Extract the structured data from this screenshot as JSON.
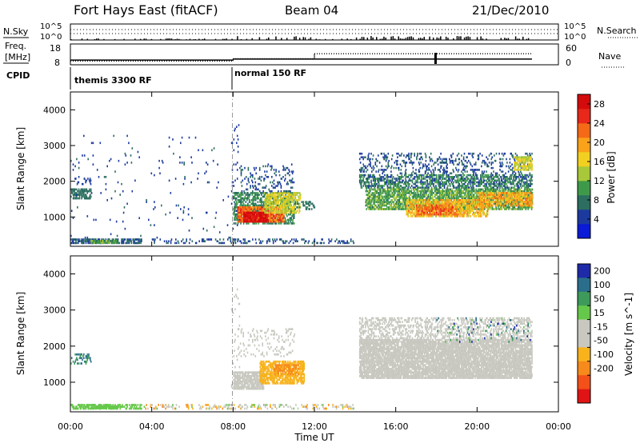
{
  "header": {
    "station": "Fort Hays East (fitACF)",
    "beam": "Beam 04",
    "date": "21/Dec/2010"
  },
  "top_panels": {
    "nsky_label": "N.Sky",
    "nsearch_label": "N.Search",
    "count_tick_top": "10^5",
    "count_tick_bottom": "10^0",
    "freq_label_line1": "Freq.",
    "freq_label_line2": "[MHz]",
    "freq_ticks": [
      "18",
      "8"
    ],
    "nave_label": "Nave",
    "nave_ticks": [
      "60",
      "0"
    ],
    "cpid_label": "CPID",
    "cpid_modes": [
      {
        "label": "themis 3300 RF",
        "start_hour": 0,
        "end_hour": 8
      },
      {
        "label": "normal 150 RF",
        "start_hour": 8,
        "end_hour": 24
      }
    ],
    "freq_series": [
      {
        "start_hour": 0,
        "end_hour": 8,
        "freq_mhz": 10.2
      },
      {
        "start_hour": 8,
        "end_hour": 22.7,
        "freq_mhz": 10.8
      }
    ],
    "nave_series": [
      {
        "start_hour": 0,
        "end_hour": 8,
        "nave": 10
      },
      {
        "start_hour": 8,
        "end_hour": 12,
        "nave": 18
      },
      {
        "start_hour": 12,
        "end_hour": 22.7,
        "nave": 35
      }
    ]
  },
  "chart_data": [
    {
      "type": "heatmap",
      "title": "",
      "xlabel": "Time UT",
      "ylabel": "Slant Range [km]",
      "x_ticks": [
        "00:00",
        "04:00",
        "08:00",
        "12:00",
        "16:00",
        "20:00",
        "00:00"
      ],
      "xlim": [
        0,
        24
      ],
      "y_ticks": [
        "1000",
        "2000",
        "3000",
        "4000"
      ],
      "ylim": [
        180,
        4500
      ],
      "colorbar": {
        "label": "Power [dB]",
        "ticks": [
          "4",
          "8",
          "12",
          "16",
          "20",
          "24",
          "28"
        ],
        "range": [
          0,
          30
        ],
        "colors": [
          "#0a1ad6",
          "#1c3a9e",
          "#2c6e60",
          "#3e9a4a",
          "#a8c83a",
          "#f2d021",
          "#f9a21a",
          "#f46a17",
          "#e8281a",
          "#d40b0b"
        ]
      },
      "regions": [
        {
          "t": [
            0.0,
            1.0
          ],
          "r": [
            1500,
            1800
          ],
          "v": [
            6,
            9
          ],
          "d": 0.55
        },
        {
          "t": [
            0.2,
            1.0
          ],
          "r": [
            1900,
            2100
          ],
          "v": [
            4,
            6
          ],
          "d": 0.15
        },
        {
          "t": [
            0.0,
            3.5
          ],
          "r": [
            250,
            360
          ],
          "v": [
            3,
            9
          ],
          "d": 0.5
        },
        {
          "t": [
            1.0,
            2.3
          ],
          "r": [
            260,
            340
          ],
          "v": [
            8,
            14
          ],
          "d": 0.8
        },
        {
          "t": [
            0.0,
            8.0
          ],
          "r": [
            400,
            3300
          ],
          "v": [
            3,
            7
          ],
          "d": 0.01
        },
        {
          "t": [
            4.0,
            14.0
          ],
          "r": [
            250,
            380
          ],
          "v": [
            3,
            8
          ],
          "d": 0.2
        },
        {
          "t": [
            7.9,
            8.3
          ],
          "r": [
            600,
            3600
          ],
          "v": [
            3,
            6
          ],
          "d": 0.06
        },
        {
          "t": [
            8.0,
            11.0
          ],
          "r": [
            800,
            1700
          ],
          "v": [
            6,
            12
          ],
          "d": 0.45
        },
        {
          "t": [
            8.2,
            10.5
          ],
          "r": [
            850,
            1300
          ],
          "v": [
            18,
            27
          ],
          "d": 0.75
        },
        {
          "t": [
            8.5,
            9.7
          ],
          "r": [
            850,
            1150
          ],
          "v": [
            26,
            30
          ],
          "d": 0.8
        },
        {
          "t": [
            9.5,
            11.3
          ],
          "r": [
            1100,
            1700
          ],
          "v": [
            12,
            18
          ],
          "d": 0.5
        },
        {
          "t": [
            8.3,
            11.0
          ],
          "r": [
            1700,
            2500
          ],
          "v": [
            3,
            8
          ],
          "d": 0.12
        },
        {
          "t": [
            11.0,
            12.0
          ],
          "r": [
            1200,
            1450
          ],
          "v": [
            6,
            10
          ],
          "d": 0.3
        },
        {
          "t": [
            14.2,
            22.7
          ],
          "r": [
            1800,
            2200
          ],
          "v": [
            4,
            12
          ],
          "d": 0.45
        },
        {
          "t": [
            14.5,
            22.7
          ],
          "r": [
            1200,
            1800
          ],
          "v": [
            8,
            14
          ],
          "d": 0.6
        },
        {
          "t": [
            16.5,
            20.5
          ],
          "r": [
            1000,
            1500
          ],
          "v": [
            14,
            22
          ],
          "d": 0.55
        },
        {
          "t": [
            17.0,
            19.0
          ],
          "r": [
            1050,
            1350
          ],
          "v": [
            20,
            25
          ],
          "d": 0.5
        },
        {
          "t": [
            20.0,
            22.7
          ],
          "r": [
            1300,
            1700
          ],
          "v": [
            16,
            23
          ],
          "d": 0.5
        },
        {
          "t": [
            14.2,
            22.7
          ],
          "r": [
            2200,
            2800
          ],
          "v": [
            3,
            8
          ],
          "d": 0.15
        },
        {
          "t": [
            21.8,
            22.7
          ],
          "r": [
            2300,
            2700
          ],
          "v": [
            12,
            18
          ],
          "d": 0.6
        }
      ]
    },
    {
      "type": "heatmap",
      "title": "",
      "xlabel": "Time UT",
      "ylabel": "Slant Range [km]",
      "x_ticks": [
        "00:00",
        "04:00",
        "08:00",
        "12:00",
        "16:00",
        "20:00",
        "00:00"
      ],
      "xlim": [
        0,
        24
      ],
      "y_ticks": [
        "1000",
        "2000",
        "3000",
        "4000"
      ],
      "ylim": [
        180,
        4500
      ],
      "colorbar": {
        "label": "Velocity [m s^-1]",
        "ticks": [
          "200",
          "100",
          "50",
          "15",
          "-15",
          "-50",
          "-100",
          "-200"
        ],
        "colors": [
          "#1e2aa8",
          "#2a6e8c",
          "#3e9a5a",
          "#66c84a",
          "#c8c8c0",
          "#c8c8c0",
          "#f7b21c",
          "#f78a1c",
          "#f4501a",
          "#e01414"
        ]
      },
      "regions": [
        {
          "t": [
            0.0,
            1.0
          ],
          "r": [
            1500,
            1800
          ],
          "v": [
            1,
            2
          ],
          "d": 0.2
        },
        {
          "t": [
            0.0,
            3.5
          ],
          "r": [
            250,
            360
          ],
          "v": [
            3,
            3
          ],
          "d": 0.45
        },
        {
          "t": [
            1.0,
            2.3
          ],
          "r": [
            260,
            340
          ],
          "v": [
            3,
            3
          ],
          "d": 0.8
        },
        {
          "t": [
            3.5,
            14.0
          ],
          "r": [
            250,
            380
          ],
          "v": [
            3,
            7
          ],
          "d": 0.2
        },
        {
          "t": [
            7.9,
            8.3
          ],
          "r": [
            600,
            3600
          ],
          "v": [
            4,
            5
          ],
          "d": 0.05
        },
        {
          "t": [
            8.0,
            9.5
          ],
          "r": [
            800,
            1300
          ],
          "v": [
            4,
            5
          ],
          "d": 0.7
        },
        {
          "t": [
            9.3,
            11.5
          ],
          "r": [
            950,
            1600
          ],
          "v": [
            6,
            6
          ],
          "d": 0.6
        },
        {
          "t": [
            10.0,
            11.2
          ],
          "r": [
            1200,
            1500
          ],
          "v": [
            7,
            7
          ],
          "d": 0.35
        },
        {
          "t": [
            8.3,
            11.0
          ],
          "r": [
            1700,
            2500
          ],
          "v": [
            4,
            5
          ],
          "d": 0.1
        },
        {
          "t": [
            14.2,
            22.7
          ],
          "r": [
            1100,
            2200
          ],
          "v": [
            4,
            5
          ],
          "d": 0.75
        },
        {
          "t": [
            14.2,
            22.7
          ],
          "r": [
            2200,
            2800
          ],
          "v": [
            4,
            5
          ],
          "d": 0.3
        },
        {
          "t": [
            18.0,
            22.7
          ],
          "r": [
            2100,
            2800
          ],
          "v": [
            0,
            3
          ],
          "d": 0.05
        }
      ]
    }
  ]
}
